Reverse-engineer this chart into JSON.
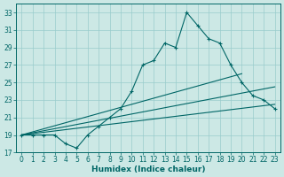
{
  "xlabel": "Humidex (Indice chaleur)",
  "bg_color": "#cce8e5",
  "grid_color": "#99cccc",
  "line_color": "#006666",
  "xlim": [
    -0.5,
    23.5
  ],
  "ylim": [
    17,
    34
  ],
  "yticks": [
    17,
    19,
    21,
    23,
    25,
    27,
    29,
    31,
    33
  ],
  "xticks": [
    0,
    1,
    2,
    3,
    4,
    5,
    6,
    7,
    8,
    9,
    10,
    11,
    12,
    13,
    14,
    15,
    16,
    17,
    18,
    19,
    20,
    21,
    22,
    23
  ],
  "main_x": [
    0,
    1,
    2,
    3,
    4,
    5,
    6,
    7,
    8,
    9,
    10,
    11,
    12,
    13,
    14,
    15,
    16,
    17,
    18,
    19,
    20,
    21,
    22,
    23
  ],
  "main_y": [
    19,
    19,
    19,
    19,
    18,
    17.5,
    19,
    20,
    21,
    22,
    24,
    27,
    27.5,
    29.5,
    29,
    33,
    31.5,
    30,
    29.5,
    27,
    25,
    23.5,
    23,
    22
  ],
  "ref_lines": [
    {
      "x": [
        0,
        23
      ],
      "y": [
        19,
        22.5
      ]
    },
    {
      "x": [
        0,
        23
      ],
      "y": [
        19,
        24.5
      ]
    },
    {
      "x": [
        0,
        20
      ],
      "y": [
        19,
        26
      ]
    }
  ]
}
